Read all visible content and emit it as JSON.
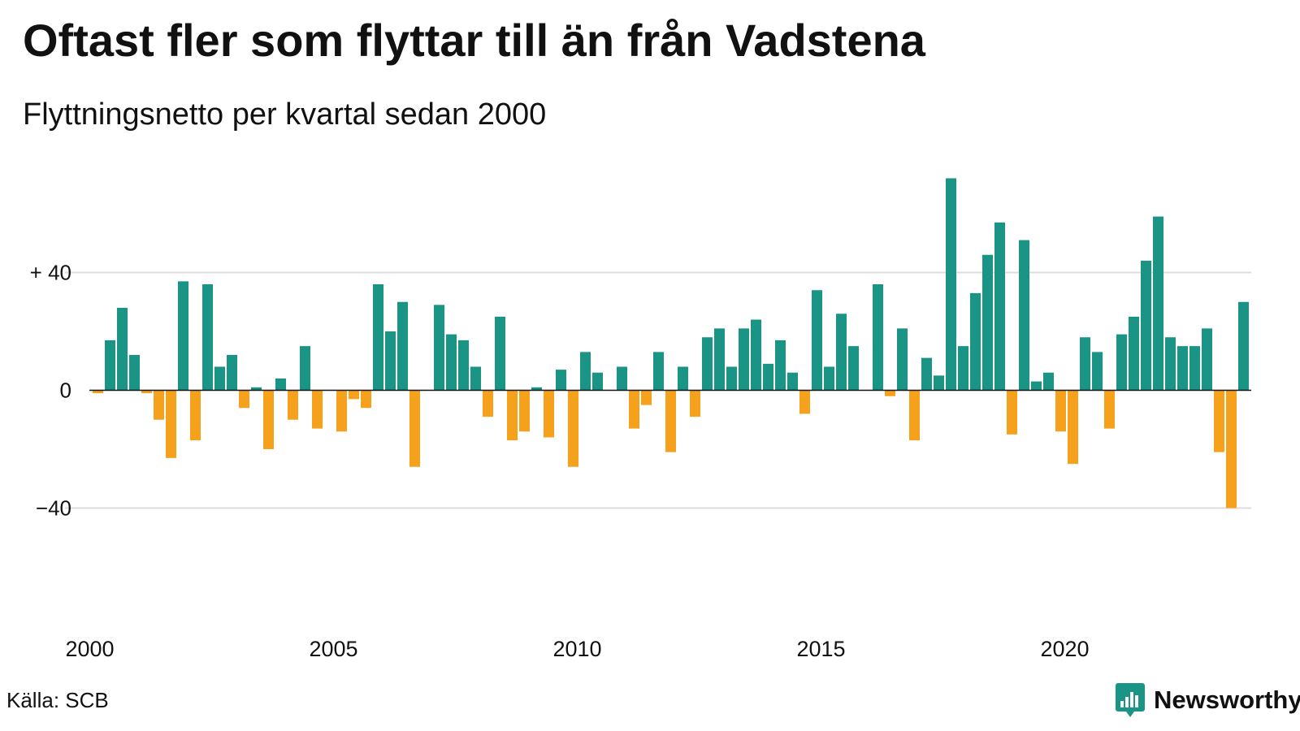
{
  "header": {
    "title": "Oftast fler som flyttar till än från Vadstena",
    "subtitle": "Flyttningsnetto per kvartal sedan 2000"
  },
  "footer": {
    "source": "Källa: SCB",
    "brand": "Newsworthy"
  },
  "colors": {
    "positive": "#1a9485",
    "negative": "#f5a11b",
    "grid": "#dddddd",
    "zero_line": "#111111",
    "brand": "#1a9485"
  },
  "icons": {
    "brand_logo": "newsworthy-logo-icon"
  },
  "chart_data": {
    "type": "bar",
    "title": "Oftast fler som flyttar till än från Vadstena",
    "subtitle": "Flyttningsnetto per kvartal sedan 2000",
    "x_start": "2000-Q1",
    "frequency": "quarterly",
    "x_ticks": [
      "2000",
      "2005",
      "2010",
      "2015",
      "2020"
    ],
    "y_ticks": [
      {
        "value": 40,
        "label": "+ 40"
      },
      {
        "value": 0,
        "label": "0"
      },
      {
        "value": -40,
        "label": "−40"
      }
    ],
    "ylim": [
      -73,
      73
    ],
    "grid": true,
    "values": [
      -1,
      17,
      28,
      12,
      -1,
      -10,
      -23,
      37,
      -17,
      36,
      8,
      12,
      -6,
      1,
      -20,
      4,
      -10,
      15,
      -13,
      0,
      -14,
      -3,
      -6,
      36,
      20,
      30,
      -26,
      0,
      29,
      19,
      17,
      8,
      -9,
      25,
      -17,
      -14,
      1,
      -16,
      7,
      -26,
      13,
      6,
      0,
      8,
      -13,
      -5,
      13,
      -21,
      8,
      -9,
      18,
      21,
      8,
      21,
      24,
      9,
      17,
      6,
      -8,
      34,
      8,
      26,
      15,
      0,
      36,
      -2,
      21,
      -17,
      11,
      5,
      72,
      15,
      33,
      46,
      57,
      -15,
      51,
      3,
      6,
      -14,
      -25,
      18,
      13,
      -13,
      19,
      25,
      44,
      59,
      18,
      15,
      15,
      21,
      -21,
      -40,
      30
    ]
  }
}
